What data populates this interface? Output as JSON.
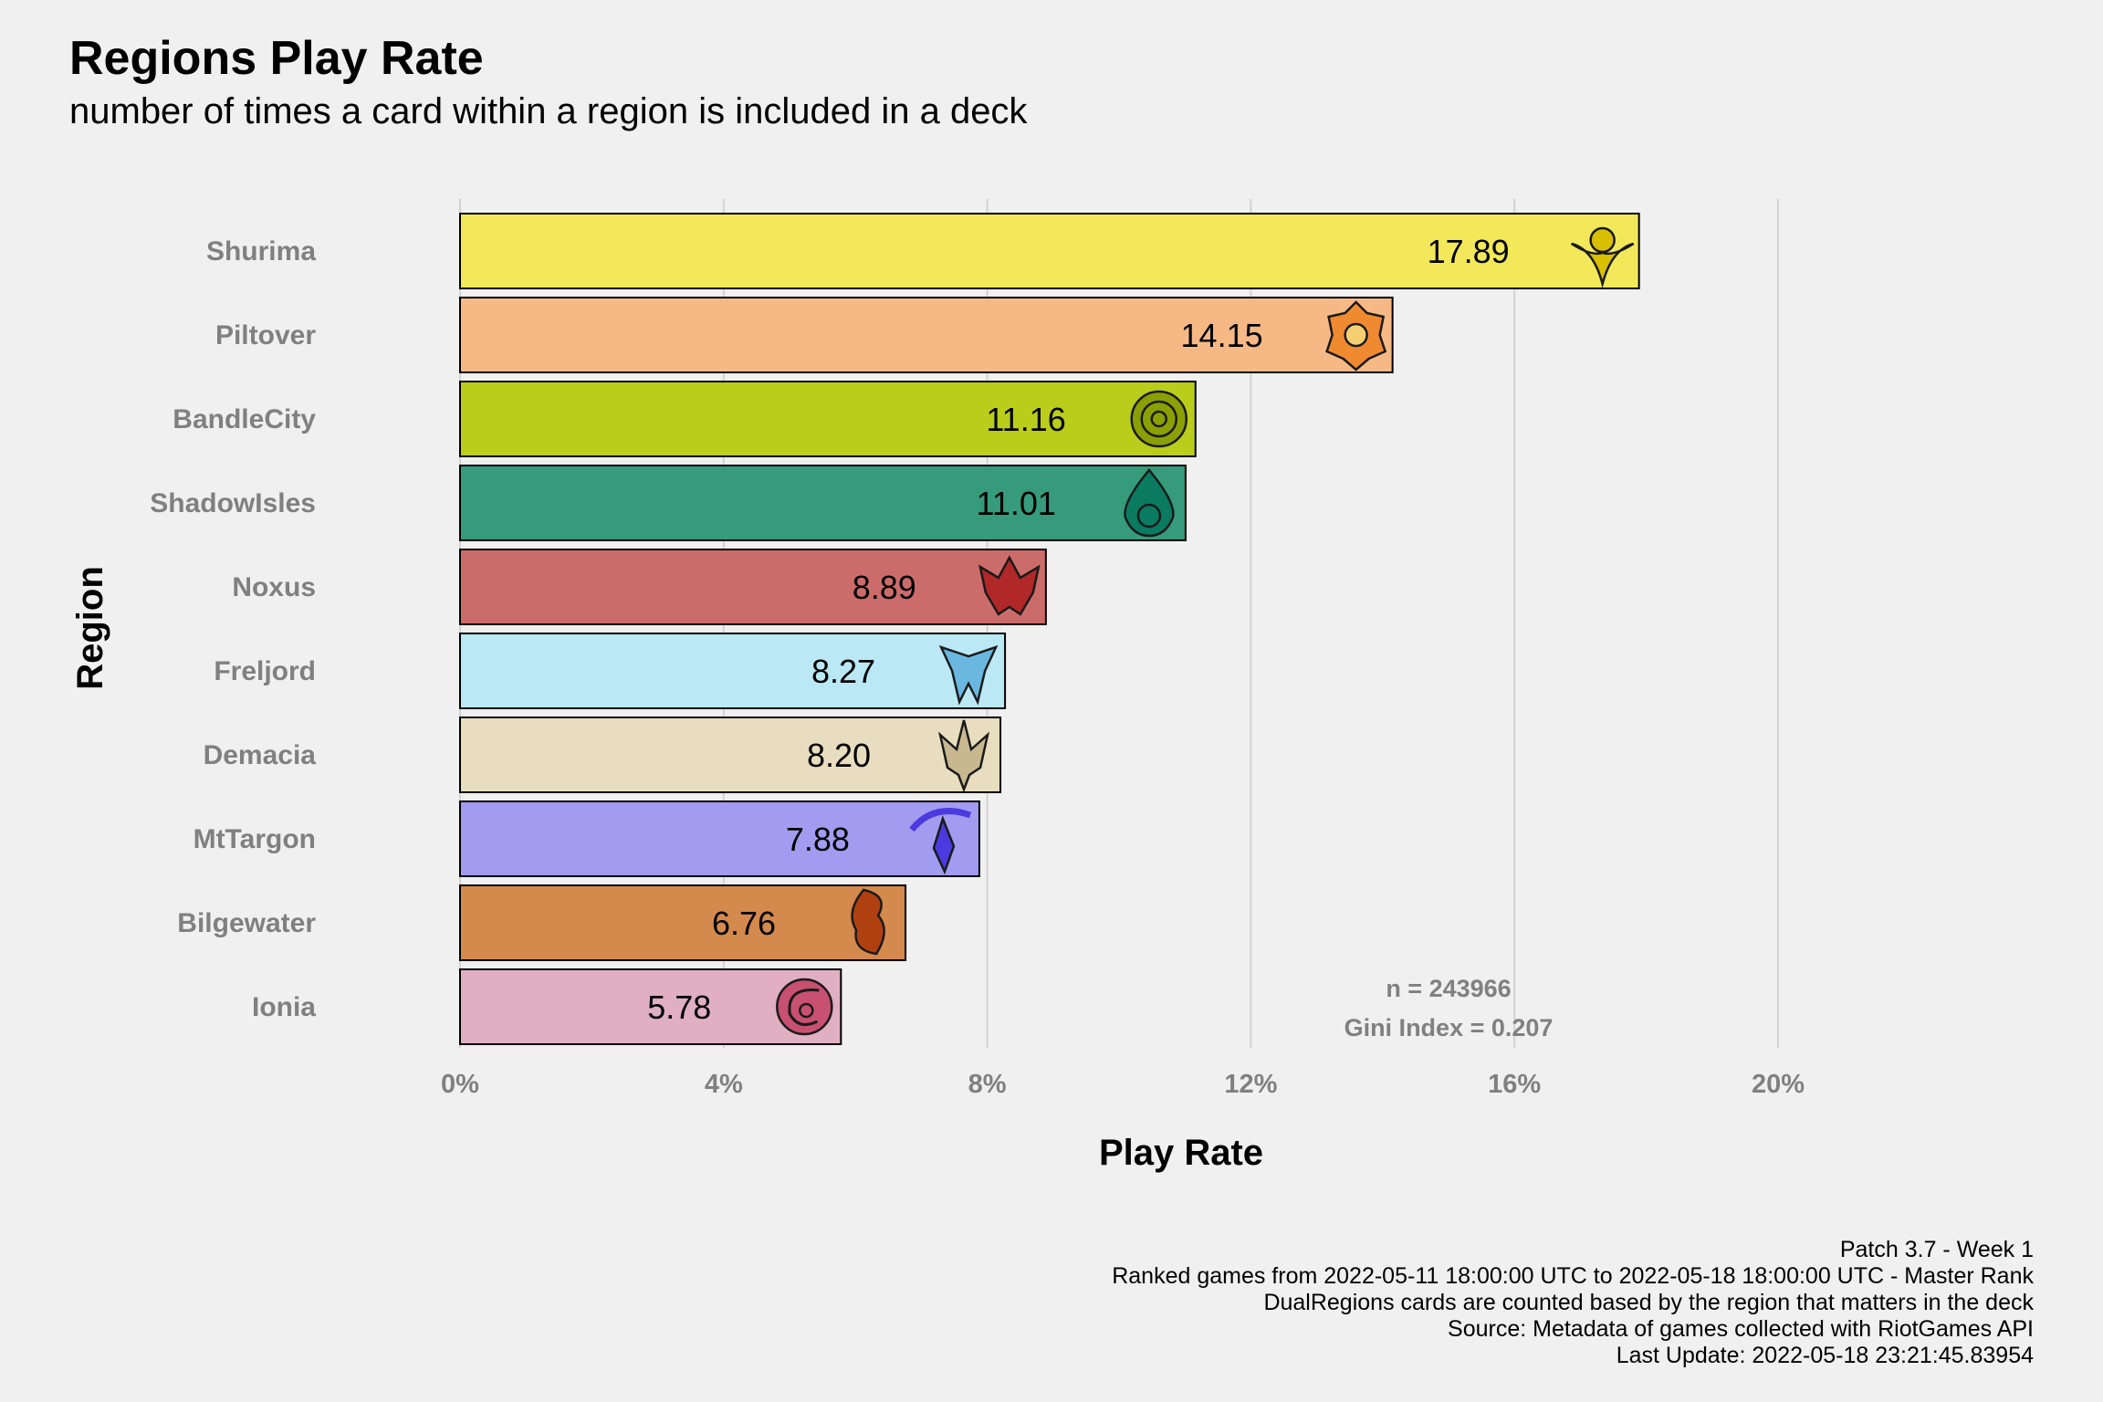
{
  "header": {
    "title": "Regions Play Rate",
    "subtitle": "number of times a card within a region is included in a deck"
  },
  "chart_data": {
    "type": "bar",
    "orientation": "horizontal",
    "xlabel": "Play Rate",
    "ylabel": "Region",
    "xlim": [
      0,
      20
    ],
    "x_ticks": [
      0,
      4,
      8,
      12,
      16,
      20
    ],
    "x_tick_labels": [
      "0%",
      "4%",
      "8%",
      "12%",
      "16%",
      "20%"
    ],
    "grid": "vertical major",
    "categories": [
      "Shurima",
      "Piltover",
      "BandleCity",
      "ShadowIsles",
      "Noxus",
      "Freljord",
      "Demacia",
      "MtTargon",
      "Bilgewater",
      "Ionia"
    ],
    "values": [
      17.89,
      14.15,
      11.16,
      11.01,
      8.89,
      8.27,
      8.2,
      7.88,
      6.76,
      5.78
    ],
    "value_labels": [
      "17.89",
      "14.15",
      "11.16",
      "11.01",
      "8.89",
      "8.27",
      "8.20",
      "7.88",
      "6.76",
      "5.78"
    ],
    "colors": [
      "#f2e85a",
      "#f6b986",
      "#bacd1a",
      "#369b7b",
      "#cc6c6a",
      "#bae9f5",
      "#e8ddbf",
      "#a29cf0",
      "#d4894d",
      "#e0afc2"
    ],
    "icon_colors": [
      "#d8c000",
      "#f08a30",
      "#8aa000",
      "#0a7a60",
      "#b02828",
      "#6ab8e0",
      "#c8b890",
      "#4a3ae0",
      "#b04010",
      "#c85070"
    ],
    "icons": [
      "shurima-icon",
      "piltover-icon",
      "bandlecity-icon",
      "shadowisles-icon",
      "noxus-icon",
      "freljord-icon",
      "demacia-icon",
      "mttargon-icon",
      "bilgewater-icon",
      "ionia-icon"
    ],
    "annotations": [
      "n = 243966",
      "Gini Index = 0.207"
    ]
  },
  "caption": {
    "lines": [
      "Patch 3.7 - Week 1",
      "Ranked games from 2022-05-11 18:00:00 UTC to 2022-05-18 18:00:00 UTC - Master Rank",
      "DualRegions cards are counted based by the region that matters in the deck",
      "Source: Metadata of games collected with RiotGames API",
      "Last Update: 2022-05-18 23:21:45.83954"
    ]
  }
}
